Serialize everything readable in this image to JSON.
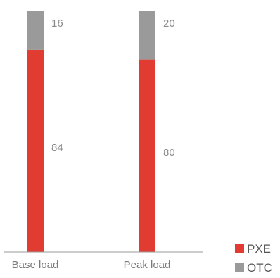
{
  "chart_data": {
    "type": "bar",
    "stacked": true,
    "categories": [
      "Base load",
      "Peak load"
    ],
    "series": [
      {
        "name": "PXE",
        "values": [
          84,
          80
        ],
        "color": "#e03c31"
      },
      {
        "name": "OTC",
        "values": [
          16,
          20
        ],
        "color": "#9a9a9a"
      }
    ],
    "ylim": [
      0,
      100
    ],
    "grid": false,
    "legend_position": "bottom-right",
    "data_labels": true
  }
}
